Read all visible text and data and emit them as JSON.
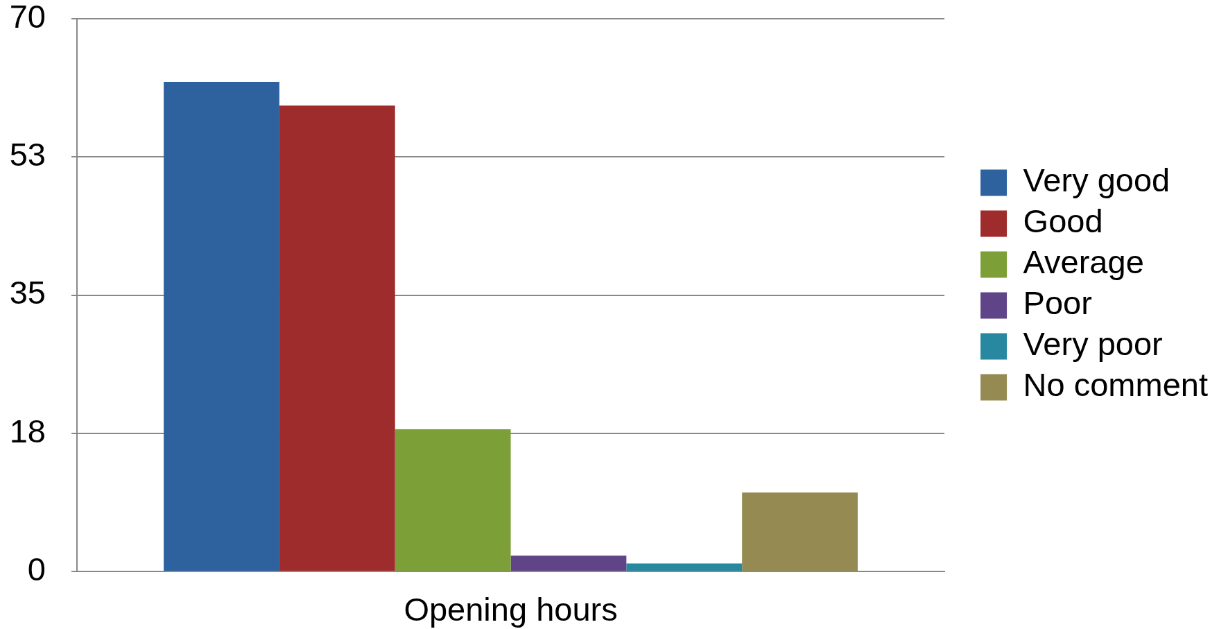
{
  "chart_data": {
    "type": "bar",
    "categories": [
      "Opening hours"
    ],
    "series": [
      {
        "name": "Very good",
        "color": "#2e629f",
        "values": [
          62
        ]
      },
      {
        "name": "Good",
        "color": "#9f2c2c",
        "values": [
          59
        ]
      },
      {
        "name": "Average",
        "color": "#7c9f37",
        "values": [
          18
        ]
      },
      {
        "name": "Poor",
        "color": "#5f4588",
        "values": [
          2
        ]
      },
      {
        "name": "Very poor",
        "color": "#2888a0",
        "values": [
          1
        ]
      },
      {
        "name": "No comment",
        "color": "#958a52",
        "values": [
          10
        ]
      }
    ],
    "ylim": [
      0,
      70
    ],
    "yticks": [
      0,
      {
        "value": 17.5,
        "label": "18"
      },
      35,
      {
        "value": 52.5,
        "label": "53"
      },
      70
    ],
    "grid": "y",
    "legend": "right"
  }
}
